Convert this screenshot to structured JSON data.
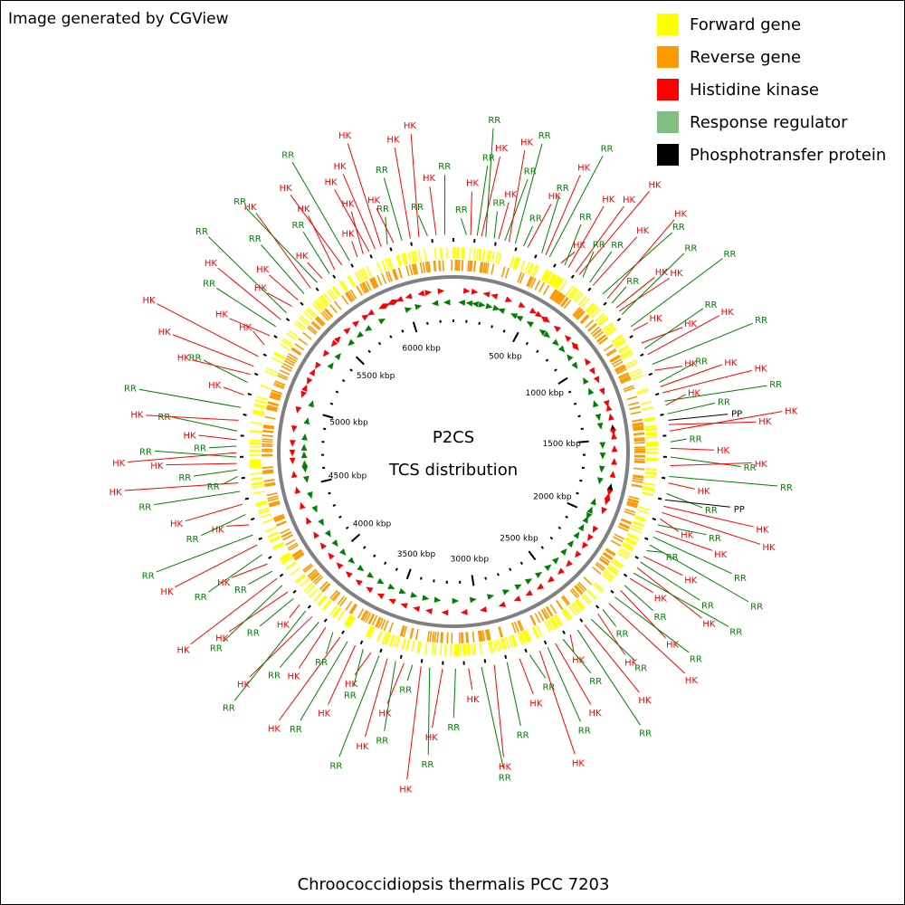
{
  "header": {
    "credit": "Image generated by CGView"
  },
  "legend": {
    "items": [
      {
        "label": "Forward gene",
        "color": "#ffff00"
      },
      {
        "label": "Reverse gene",
        "color": "#ff9900"
      },
      {
        "label": "Histidine kinase",
        "color": "#ff0000"
      },
      {
        "label": "Response regulator",
        "color": "#7fbf7f"
      },
      {
        "label": "Phosphotransfer protein",
        "color": "#000000"
      }
    ]
  },
  "center": {
    "title_line1": "P2CS",
    "title_line2": "TCS distribution"
  },
  "footer": {
    "organism": "Chroococcidiopsis thermalis PCC 7203"
  },
  "map": {
    "genome_length_kbp": 6300,
    "ticks": [
      {
        "label": "500 kbp",
        "kbp": 500
      },
      {
        "label": "1000 kbp",
        "kbp": 1000
      },
      {
        "label": "1500 kbp",
        "kbp": 1500
      },
      {
        "label": "2000 kbp",
        "kbp": 2000
      },
      {
        "label": "2500 kbp",
        "kbp": 2500
      },
      {
        "label": "3000 kbp",
        "kbp": 3000
      },
      {
        "label": "3500 kbp",
        "kbp": 3500
      },
      {
        "label": "4000 kbp",
        "kbp": 4000
      },
      {
        "label": "4500 kbp",
        "kbp": 4500
      },
      {
        "label": "5000 kbp",
        "kbp": 5000
      },
      {
        "label": "5500 kbp",
        "kbp": 5500
      },
      {
        "label": "6000 kbp",
        "kbp": 6000
      }
    ],
    "feature_colors": {
      "HK": "#ff0000",
      "RR": "#008000",
      "PP": "#000000",
      "forward": "#ffff00",
      "reverse": "#ff9900",
      "backbone": "#808080"
    },
    "features": [
      {
        "label": "RR",
        "kbp": 60
      },
      {
        "label": "HK",
        "kbp": 80
      },
      {
        "label": "RR",
        "kbp": 110
      },
      {
        "label": "HK",
        "kbp": 130
      },
      {
        "label": "RR",
        "kbp": 150
      },
      {
        "label": "RR",
        "kbp": 190
      },
      {
        "label": "HK",
        "kbp": 210
      },
      {
        "label": "RR",
        "kbp": 240
      },
      {
        "label": "HK",
        "kbp": 260
      },
      {
        "label": "RR",
        "kbp": 290
      },
      {
        "label": "RR",
        "kbp": 330
      },
      {
        "label": "HK",
        "kbp": 350
      },
      {
        "label": "RR",
        "kbp": 420
      },
      {
        "label": "HK",
        "kbp": 440
      },
      {
        "label": "RR",
        "kbp": 460
      },
      {
        "label": "HK",
        "kbp": 520
      },
      {
        "label": "RR",
        "kbp": 540
      },
      {
        "label": "HK",
        "kbp": 560
      },
      {
        "label": "HK",
        "kbp": 600
      },
      {
        "label": "HK",
        "kbp": 620
      },
      {
        "label": "RR",
        "kbp": 640
      },
      {
        "label": "RR",
        "kbp": 680
      },
      {
        "label": "HK",
        "kbp": 700
      },
      {
        "label": "RR",
        "kbp": 760
      },
      {
        "label": "HK",
        "kbp": 790
      },
      {
        "label": "RR",
        "kbp": 820
      },
      {
        "label": "HK",
        "kbp": 850
      },
      {
        "label": "HK",
        "kbp": 870
      },
      {
        "label": "RR",
        "kbp": 890
      },
      {
        "label": "RR",
        "kbp": 960
      },
      {
        "label": "HK",
        "kbp": 980
      },
      {
        "label": "HK",
        "kbp": 1050
      },
      {
        "label": "RR",
        "kbp": 1080
      },
      {
        "label": "HK",
        "kbp": 1110
      },
      {
        "label": "RR",
        "kbp": 1160
      },
      {
        "label": "HK",
        "kbp": 1190
      },
      {
        "label": "RR",
        "kbp": 1250
      },
      {
        "label": "HK",
        "kbp": 1270
      },
      {
        "label": "HK",
        "kbp": 1300
      },
      {
        "label": "RR",
        "kbp": 1340
      },
      {
        "label": "HK",
        "kbp": 1360
      },
      {
        "label": "RR",
        "kbp": 1400
      },
      {
        "label": "PP",
        "kbp": 1430
      },
      {
        "label": "HK",
        "kbp": 1450
      },
      {
        "label": "HK",
        "kbp": 1480
      },
      {
        "label": "RR",
        "kbp": 1530
      },
      {
        "label": "HK",
        "kbp": 1560
      },
      {
        "label": "RR",
        "kbp": 1600
      },
      {
        "label": "HK",
        "kbp": 1640
      },
      {
        "label": "RR",
        "kbp": 1690
      },
      {
        "label": "HK",
        "kbp": 1720
      },
      {
        "label": "RR",
        "kbp": 1770
      },
      {
        "label": "PP",
        "kbp": 1800
      },
      {
        "label": "HK",
        "kbp": 1830
      },
      {
        "label": "HK",
        "kbp": 1860
      },
      {
        "label": "HK",
        "kbp": 1890
      },
      {
        "label": "RR",
        "kbp": 1920
      },
      {
        "label": "HK",
        "kbp": 1950
      },
      {
        "label": "RR",
        "kbp": 1980
      },
      {
        "label": "RR",
        "kbp": 2020
      },
      {
        "label": "RR",
        "kbp": 2050
      },
      {
        "label": "HK",
        "kbp": 2080
      },
      {
        "label": "RR",
        "kbp": 2110
      },
      {
        "label": "HK",
        "kbp": 2140
      },
      {
        "label": "RR",
        "kbp": 2170
      },
      {
        "label": "HK",
        "kbp": 2200
      },
      {
        "label": "RR",
        "kbp": 2240
      },
      {
        "label": "HK",
        "kbp": 2270
      },
      {
        "label": "RR",
        "kbp": 2310
      },
      {
        "label": "HK",
        "kbp": 2350
      },
      {
        "label": "RR",
        "kbp": 2390
      },
      {
        "label": "HK",
        "kbp": 2420
      },
      {
        "label": "RR",
        "kbp": 2460
      },
      {
        "label": "HK",
        "kbp": 2500
      },
      {
        "label": "RR",
        "kbp": 2540
      },
      {
        "label": "HK",
        "kbp": 2580
      },
      {
        "label": "RR",
        "kbp": 2620
      },
      {
        "label": "HK",
        "kbp": 2660
      },
      {
        "label": "RR",
        "kbp": 2700
      },
      {
        "label": "HK",
        "kbp": 2740
      },
      {
        "label": "RR",
        "kbp": 2790
      },
      {
        "label": "HK",
        "kbp": 2840
      },
      {
        "label": "RR",
        "kbp": 2900
      },
      {
        "label": "HK",
        "kbp": 2960
      },
      {
        "label": "RR",
        "kbp": 3020
      },
      {
        "label": "HK",
        "kbp": 3080
      },
      {
        "label": "RR",
        "kbp": 3140
      },
      {
        "label": "HK",
        "kbp": 3200
      },
      {
        "label": "RR",
        "kbp": 3260
      },
      {
        "label": "HK",
        "kbp": 3300
      },
      {
        "label": "RR",
        "kbp": 3340
      },
      {
        "label": "HK",
        "kbp": 3380
      },
      {
        "label": "RR",
        "kbp": 3420
      },
      {
        "label": "HK",
        "kbp": 3460
      },
      {
        "label": "RR",
        "kbp": 3500
      },
      {
        "label": "HK",
        "kbp": 3540
      },
      {
        "label": "RR",
        "kbp": 3580
      },
      {
        "label": "HK",
        "kbp": 3620
      },
      {
        "label": "RR",
        "kbp": 3660
      },
      {
        "label": "HK",
        "kbp": 3700
      },
      {
        "label": "RR",
        "kbp": 3740
      },
      {
        "label": "HK",
        "kbp": 3780
      },
      {
        "label": "RR",
        "kbp": 3820
      },
      {
        "label": "HK",
        "kbp": 3860
      },
      {
        "label": "RR",
        "kbp": 3900
      },
      {
        "label": "HK",
        "kbp": 3940
      },
      {
        "label": "RR",
        "kbp": 3980
      },
      {
        "label": "HK",
        "kbp": 4020
      },
      {
        "label": "RR",
        "kbp": 4060
      },
      {
        "label": "HK",
        "kbp": 4100
      },
      {
        "label": "RR",
        "kbp": 4140
      },
      {
        "label": "HK",
        "kbp": 4180
      },
      {
        "label": "RR",
        "kbp": 4230
      },
      {
        "label": "HK",
        "kbp": 4280
      },
      {
        "label": "RR",
        "kbp": 4330
      },
      {
        "label": "HK",
        "kbp": 4380
      },
      {
        "label": "RR",
        "kbp": 4430
      },
      {
        "label": "HK",
        "kbp": 4480
      },
      {
        "label": "RR",
        "kbp": 4540
      },
      {
        "label": "HK",
        "kbp": 4580
      },
      {
        "label": "RR",
        "kbp": 4610
      },
      {
        "label": "RR",
        "kbp": 4640
      },
      {
        "label": "HK",
        "kbp": 4670
      },
      {
        "label": "RR",
        "kbp": 4700
      },
      {
        "label": "HK",
        "kbp": 4720
      },
      {
        "label": "RR",
        "kbp": 4750
      },
      {
        "label": "HK",
        "kbp": 4780
      },
      {
        "label": "RR",
        "kbp": 4820
      },
      {
        "label": "HK",
        "kbp": 4870
      },
      {
        "label": "RR",
        "kbp": 4930
      },
      {
        "label": "HK",
        "kbp": 4990
      },
      {
        "label": "RR",
        "kbp": 5050
      },
      {
        "label": "HK",
        "kbp": 5090
      },
      {
        "label": "HK",
        "kbp": 5130
      },
      {
        "label": "HK",
        "kbp": 5180
      },
      {
        "label": "HK",
        "kbp": 5240
      },
      {
        "label": "HK",
        "kbp": 5290
      },
      {
        "label": "RR",
        "kbp": 5340
      },
      {
        "label": "HK",
        "kbp": 5380
      },
      {
        "label": "RR",
        "kbp": 5420
      },
      {
        "label": "HK",
        "kbp": 5460
      },
      {
        "label": "HK",
        "kbp": 5500
      },
      {
        "label": "RR",
        "kbp": 5540
      },
      {
        "label": "HK",
        "kbp": 5580
      },
      {
        "label": "RR",
        "kbp": 5620
      },
      {
        "label": "HK",
        "kbp": 5650
      },
      {
        "label": "RR",
        "kbp": 5690
      },
      {
        "label": "HK",
        "kbp": 5720
      },
      {
        "label": "HK",
        "kbp": 5760
      },
      {
        "label": "RR",
        "kbp": 5800
      },
      {
        "label": "HK",
        "kbp": 5840
      },
      {
        "label": "HK",
        "kbp": 5870
      },
      {
        "label": "HK",
        "kbp": 5900
      },
      {
        "label": "HK",
        "kbp": 5930
      },
      {
        "label": "HK",
        "kbp": 5960
      },
      {
        "label": "RR",
        "kbp": 5990
      },
      {
        "label": "HK",
        "kbp": 6020
      },
      {
        "label": "RR",
        "kbp": 6060
      },
      {
        "label": "HK",
        "kbp": 6100
      },
      {
        "label": "HK",
        "kbp": 6140
      },
      {
        "label": "RR",
        "kbp": 6180
      },
      {
        "label": "HK",
        "kbp": 6220
      },
      {
        "label": "RR",
        "kbp": 6260
      }
    ]
  }
}
